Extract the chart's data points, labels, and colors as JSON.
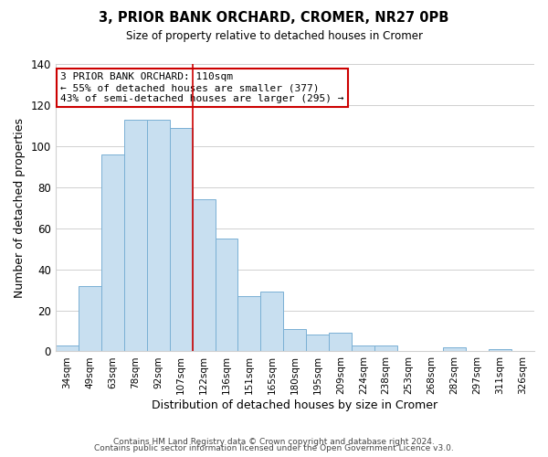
{
  "title": "3, PRIOR BANK ORCHARD, CROMER, NR27 0PB",
  "subtitle": "Size of property relative to detached houses in Cromer",
  "xlabel": "Distribution of detached houses by size in Cromer",
  "ylabel": "Number of detached properties",
  "bar_labels": [
    "34sqm",
    "49sqm",
    "63sqm",
    "78sqm",
    "92sqm",
    "107sqm",
    "122sqm",
    "136sqm",
    "151sqm",
    "165sqm",
    "180sqm",
    "195sqm",
    "209sqm",
    "224sqm",
    "238sqm",
    "253sqm",
    "268sqm",
    "282sqm",
    "297sqm",
    "311sqm",
    "326sqm"
  ],
  "bar_values": [
    3,
    32,
    96,
    113,
    113,
    109,
    74,
    55,
    27,
    29,
    11,
    8,
    9,
    3,
    3,
    0,
    0,
    2,
    0,
    1,
    0
  ],
  "bar_color": "#c8dff0",
  "bar_edge_color": "#7ab0d4",
  "vline_index": 5,
  "vline_color": "#cc0000",
  "ylim": [
    0,
    140
  ],
  "yticks": [
    0,
    20,
    40,
    60,
    80,
    100,
    120,
    140
  ],
  "annotation_title": "3 PRIOR BANK ORCHARD: 110sqm",
  "annotation_line1": "← 55% of detached houses are smaller (377)",
  "annotation_line2": "43% of semi-detached houses are larger (295) →",
  "footer_line1": "Contains HM Land Registry data © Crown copyright and database right 2024.",
  "footer_line2": "Contains public sector information licensed under the Open Government Licence v3.0.",
  "grid_color": "#d0d0d0",
  "background_color": "#ffffff"
}
